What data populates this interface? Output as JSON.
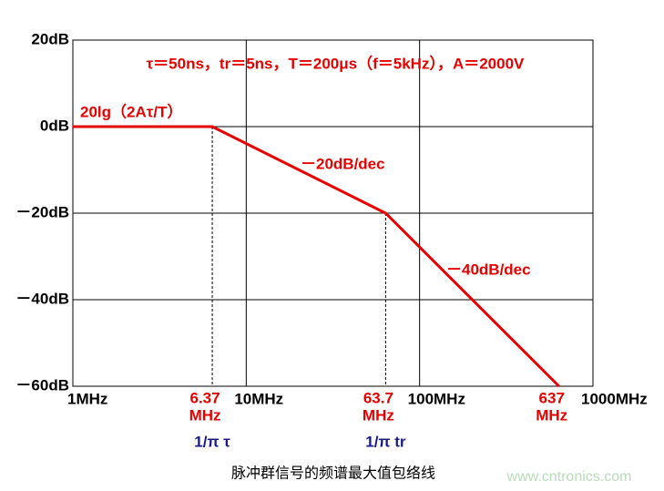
{
  "chart_data": {
    "type": "line",
    "x_scale": "log",
    "xlim": [
      1,
      1000
    ],
    "xticks": [
      {
        "value": 1,
        "label": "1MHz"
      },
      {
        "value": 10,
        "label": "10MHz"
      },
      {
        "value": 100,
        "label": "100MHz"
      },
      {
        "value": 1000,
        "label": "1000MHz"
      }
    ],
    "ylim": [
      -60,
      20
    ],
    "yticks": [
      {
        "value": -60,
        "label": "－60dB"
      },
      {
        "value": -40,
        "label": "－40dB"
      },
      {
        "value": -20,
        "label": "－20dB"
      },
      {
        "value": 0,
        "label": "0dB"
      },
      {
        "value": 20,
        "label": "20dB"
      }
    ],
    "grid": true,
    "x": [
      1,
      6.37,
      63.7,
      637
    ],
    "series": [
      {
        "color": "#e60000",
        "values": [
          0,
          0,
          -20,
          -60
        ]
      }
    ],
    "corner_labels": [
      {
        "x": 6.37,
        "label": "6.37",
        "unit": "MHz",
        "formula": "1/π τ",
        "dashed": true
      },
      {
        "x": 63.7,
        "label": "63.7",
        "unit": "MHz",
        "formula": "1/π tr",
        "dashed": true
      },
      {
        "x": 637,
        "label": "637",
        "unit": "MHz",
        "dashed": false
      }
    ],
    "annotations": [
      "τ＝50ns，tr＝5ns，T＝200μs（f＝5kHz），A＝2000V",
      "20lg（2Aτ/T）",
      "－20dB/dec",
      "－40dB/dec"
    ],
    "annotation_color": "#e60000",
    "formula_color": "#1a1a8c",
    "caption": "脉冲群信号的频谱最大值包络线",
    "watermark": "www.cntronics.com"
  }
}
